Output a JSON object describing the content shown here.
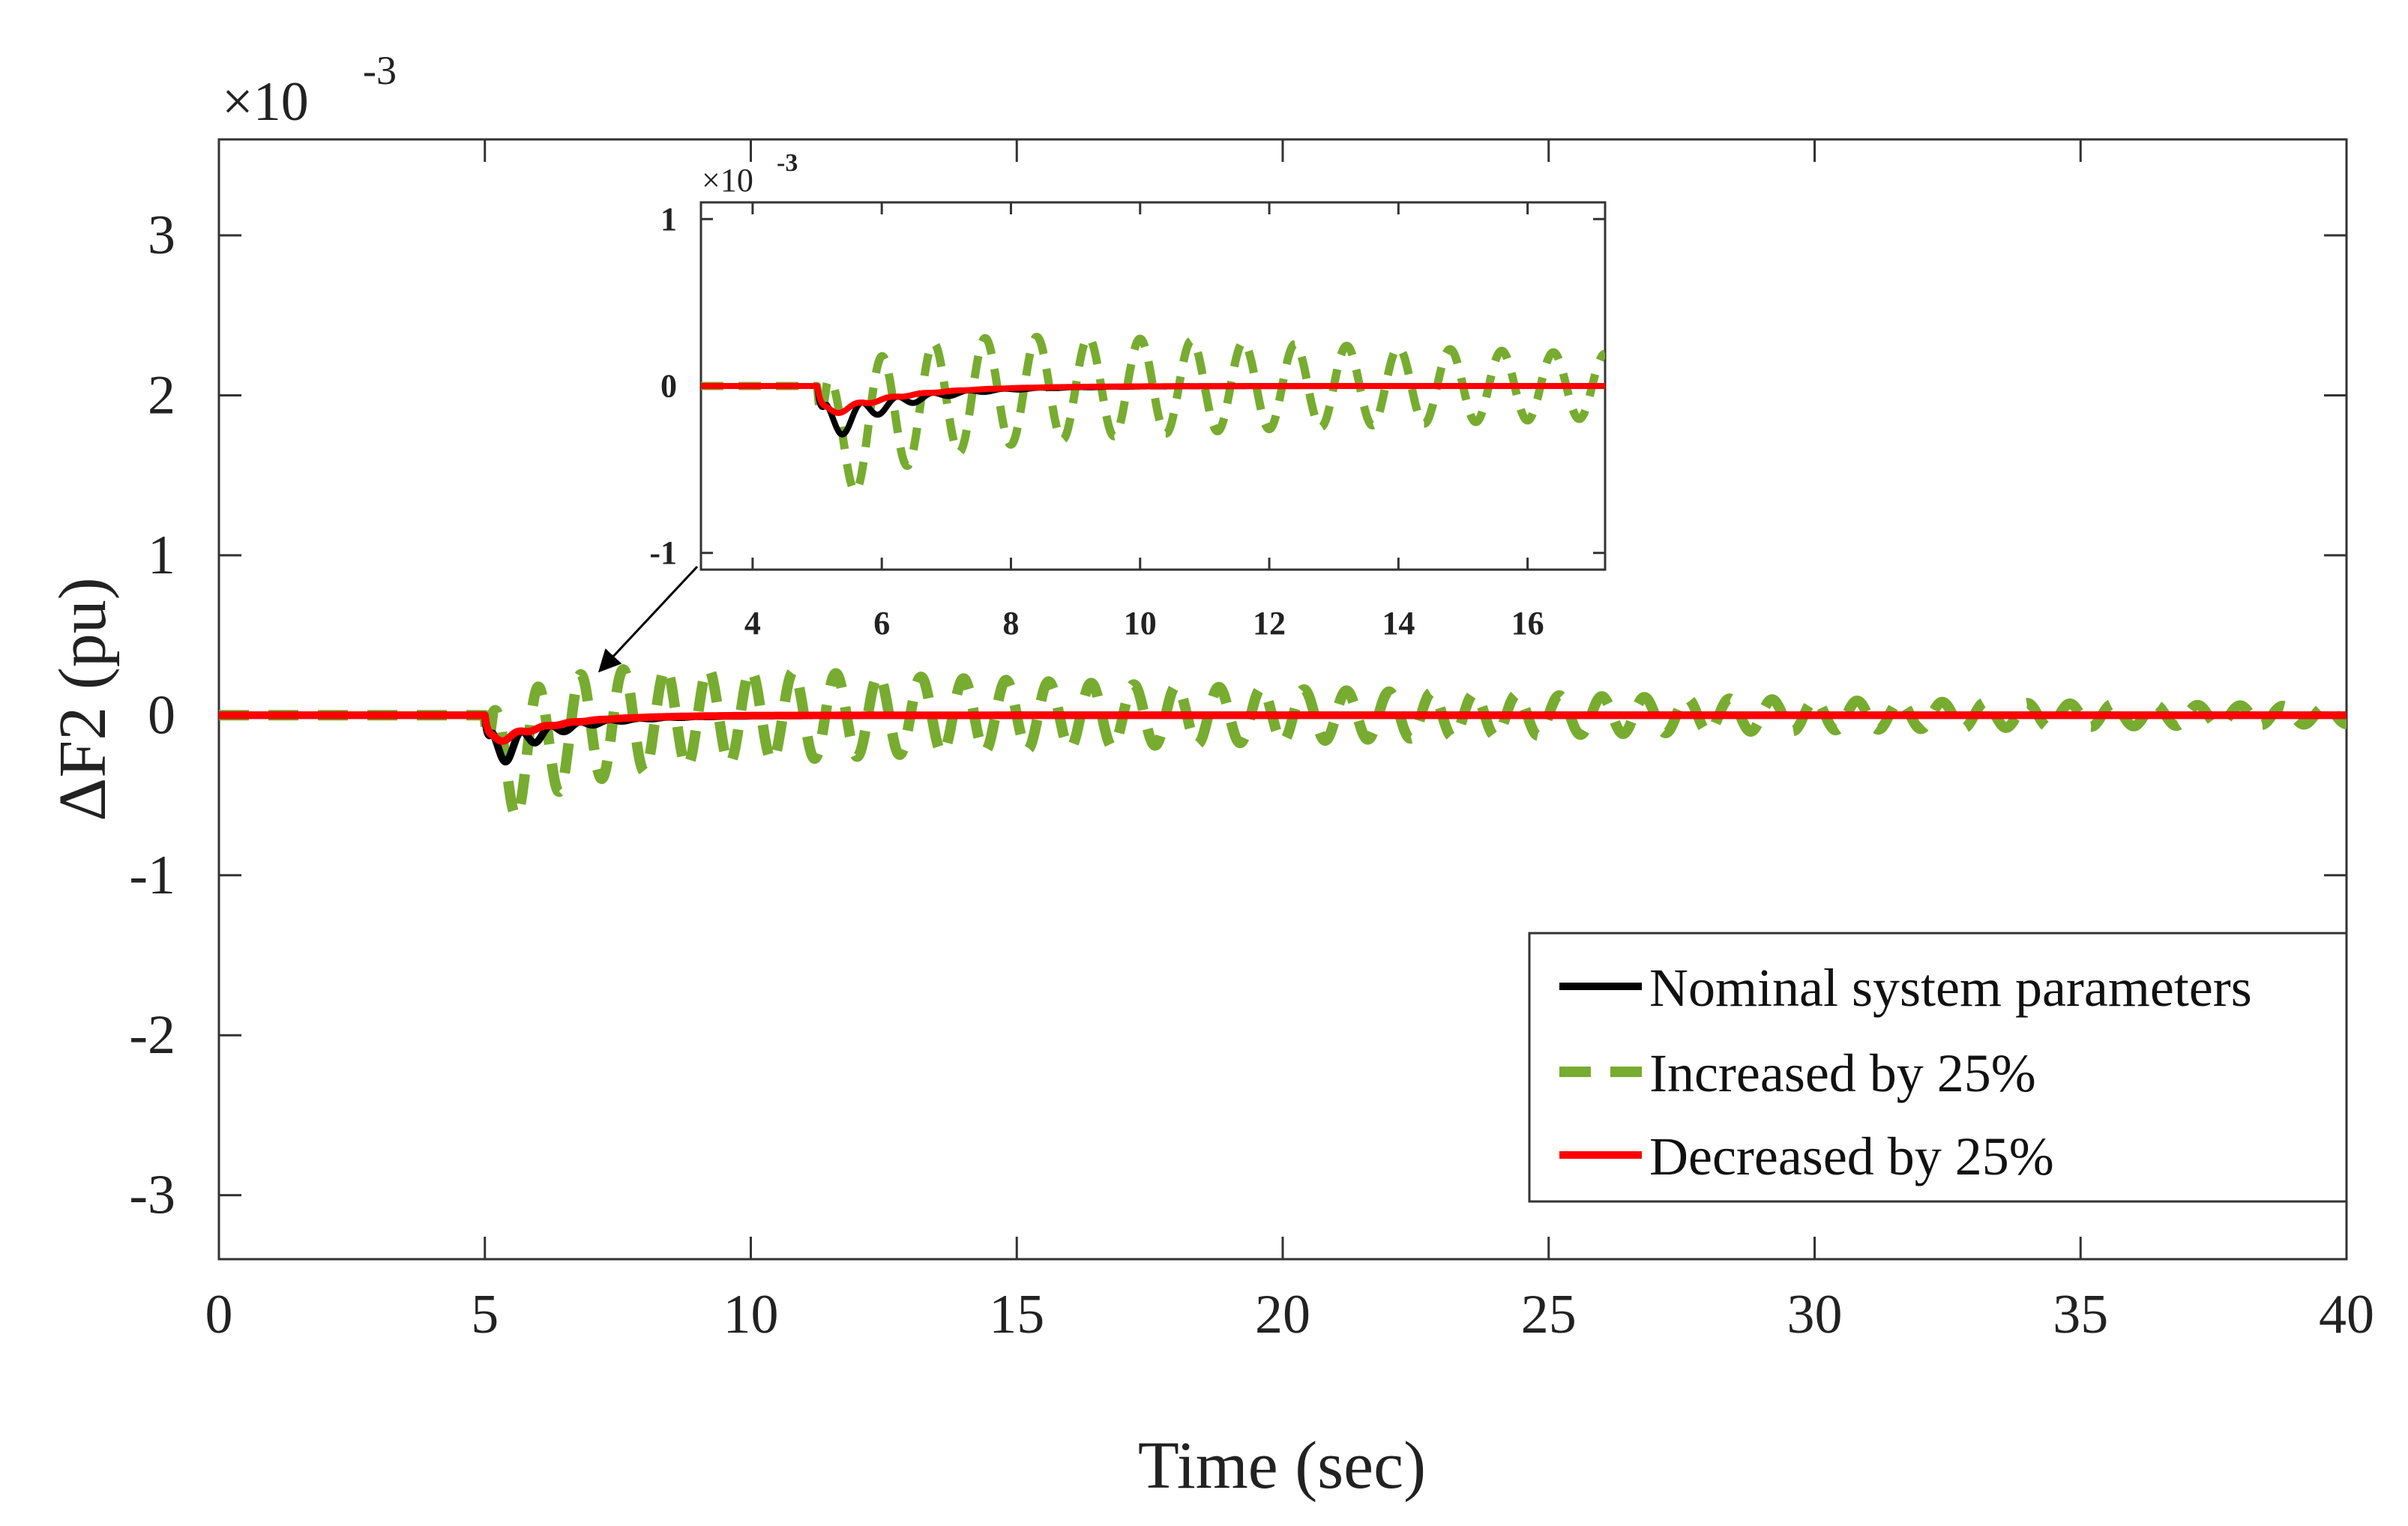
{
  "chart_data": {
    "type": "line",
    "xlabel": "Time (sec)",
    "ylabel": "ΔF2 (pu)",
    "y_scale_base": "×10",
    "y_scale_exponent": "-3",
    "xlim": [
      0,
      40
    ],
    "ylim": [
      -3.4,
      3.6
    ],
    "x_ticks": [
      "0",
      "5",
      "10",
      "15",
      "20",
      "25",
      "30",
      "35",
      "40"
    ],
    "y_ticks": [
      "3",
      "2",
      "1",
      "0",
      "-1",
      "-2",
      "-3"
    ],
    "disturbance_time": 5,
    "series": [
      {
        "name": "Nominal system parameters",
        "color": "#000000",
        "style": "solid",
        "undershoot": -0.3,
        "osc_amplitude": 0.13,
        "osc_period": 0.55,
        "decay_time": 0.9
      },
      {
        "name": "Increased by 25%",
        "color": "#77ac30",
        "style": "dashed",
        "undershoot": -0.45,
        "osc_amplitude": 0.38,
        "osc_period": 0.8,
        "decay_time": 18
      },
      {
        "name": "Decreased by 25%",
        "color": "#ff0000",
        "style": "solid",
        "undershoot": -0.2,
        "osc_amplitude": 0.03,
        "osc_period": 0.5,
        "decay_time": 0.7
      }
    ],
    "legend_position": "bottom-right",
    "inset": {
      "xlim": [
        3.2,
        17.2
      ],
      "ylim": [
        -1.1,
        1.1
      ],
      "x_ticks": [
        "4",
        "6",
        "8",
        "10",
        "12",
        "14",
        "16"
      ],
      "y_ticks": [
        "1",
        "0",
        "-1"
      ],
      "y_scale_base": "×10",
      "y_scale_exponent": "-3",
      "zoom_target_time": 7
    }
  }
}
